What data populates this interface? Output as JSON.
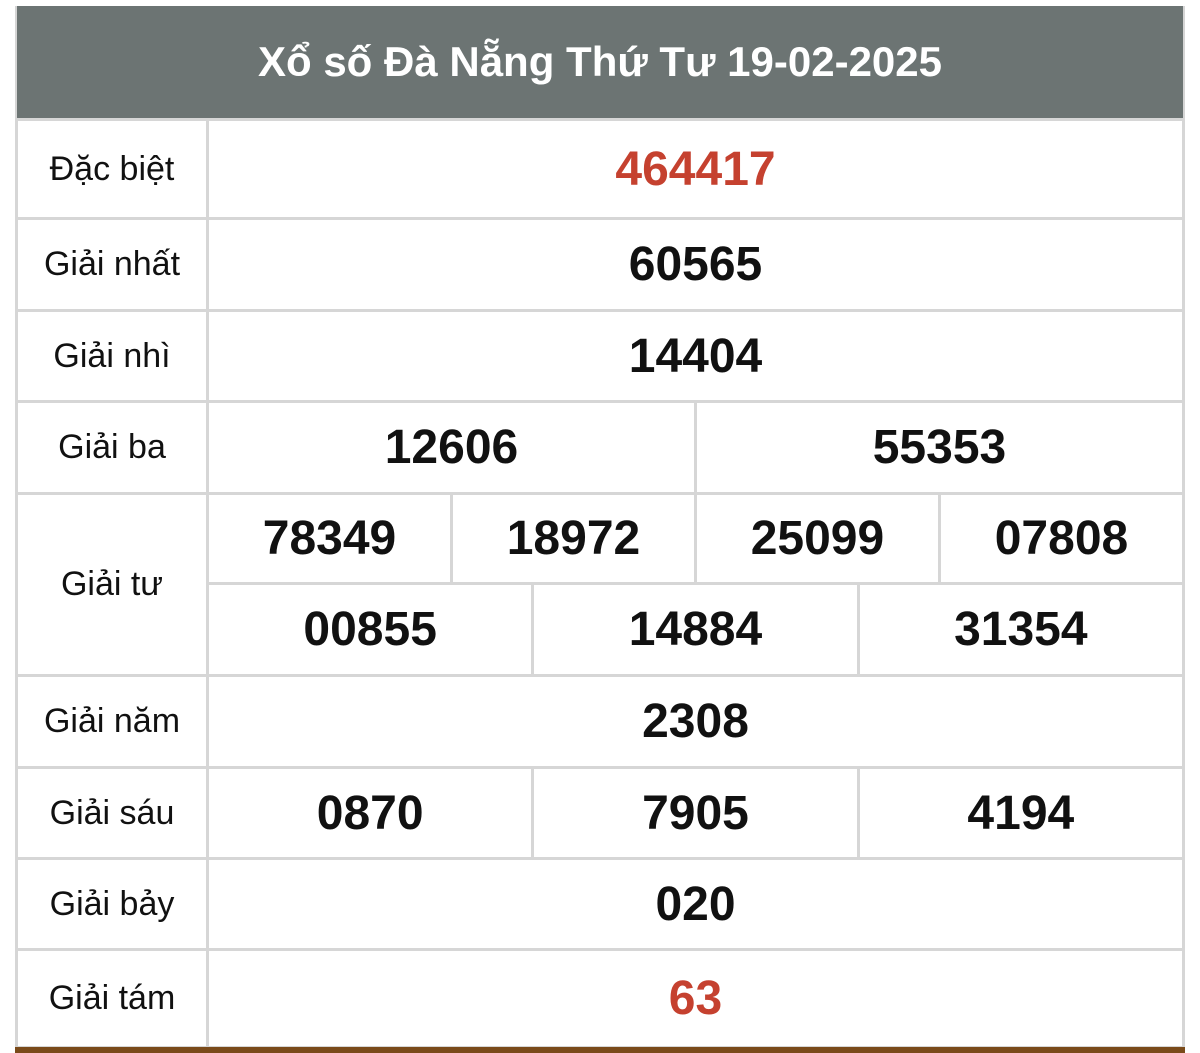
{
  "title": "Xổ số Đà Nẵng Thứ Tư 19-02-2025",
  "prizes": [
    {
      "label": "Đặc biệt",
      "numbers": [
        "464417"
      ]
    },
    {
      "label": "Giải nhất",
      "numbers": [
        "60565"
      ]
    },
    {
      "label": "Giải nhì",
      "numbers": [
        "14404"
      ]
    },
    {
      "label": "Giải ba",
      "numbers": [
        "12606",
        "55353"
      ]
    },
    {
      "label": "Giải tư",
      "numbers": [
        "78349",
        "18972",
        "25099",
        "07808",
        "00855",
        "14884",
        "31354"
      ]
    },
    {
      "label": "Giải năm",
      "numbers": [
        "2308"
      ]
    },
    {
      "label": "Giải sáu",
      "numbers": [
        "0870",
        "7905",
        "4194"
      ]
    },
    {
      "label": "Giải bảy",
      "numbers": [
        "020"
      ]
    },
    {
      "label": "Giải tám",
      "numbers": [
        "63"
      ]
    }
  ],
  "colors": {
    "header_bg": "#6c7473",
    "highlight": "#c5412f",
    "bottom_bar": "#7a4a1a"
  }
}
